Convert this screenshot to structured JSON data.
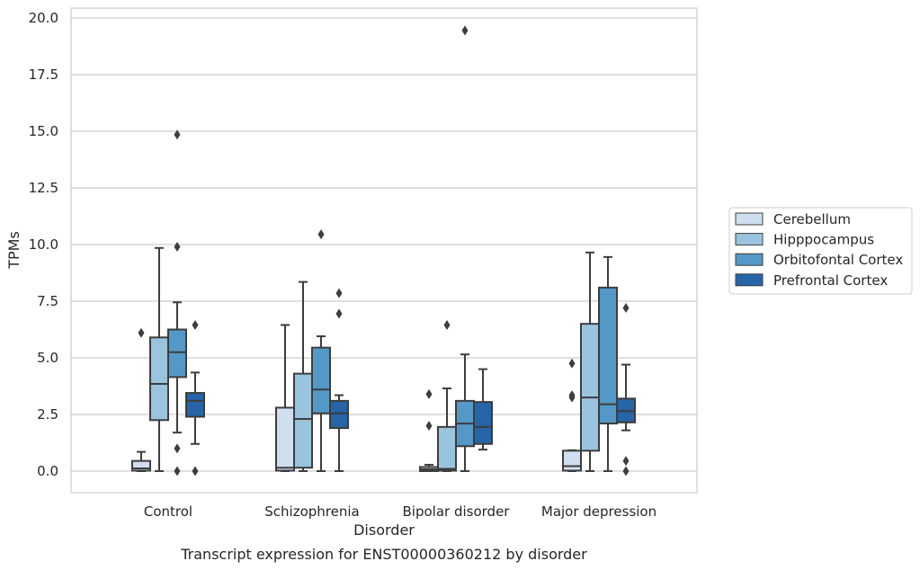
{
  "chart_data": {
    "type": "box",
    "caption": "Transcript expression for ENST00000360212 by disorder",
    "xlabel": "Disorder",
    "ylabel": "TPMs",
    "ylim": [
      -0.9,
      20.5
    ],
    "yticks": [
      "0.0",
      "2.5",
      "5.0",
      "7.5",
      "10.0",
      "12.5",
      "15.0",
      "17.5",
      "20.0"
    ],
    "grid": true,
    "legend_position": "right",
    "categories": [
      "Control",
      "Schizophrenia",
      "Bipolar disorder",
      "Major depression"
    ],
    "series": [
      {
        "name": "Cerebellum",
        "color": "#d0dff0",
        "boxes": [
          {
            "whisker_low": 0.0,
            "q1": 0.02,
            "median": 0.12,
            "q3": 0.45,
            "whisker_high": 0.85,
            "outliers": [
              6.1
            ]
          },
          {
            "whisker_low": 0.0,
            "q1": 0.02,
            "median": 0.15,
            "q3": 2.8,
            "whisker_high": 6.45,
            "outliers": []
          },
          {
            "whisker_low": 0.0,
            "q1": 0.0,
            "median": 0.08,
            "q3": 0.18,
            "whisker_high": 0.28,
            "outliers": [
              3.4,
              2.0
            ]
          },
          {
            "whisker_low": 0.0,
            "q1": 0.02,
            "median": 0.22,
            "q3": 0.9,
            "whisker_high": 0.92,
            "outliers": [
              4.75,
              3.35,
              3.25
            ]
          }
        ]
      },
      {
        "name": "Hipppocampus",
        "color": "#9ac4dd",
        "boxes": [
          {
            "whisker_low": 0.0,
            "q1": 2.25,
            "median": 3.85,
            "q3": 5.9,
            "whisker_high": 9.85,
            "outliers": []
          },
          {
            "whisker_low": 0.0,
            "q1": 0.15,
            "median": 2.3,
            "q3": 4.3,
            "whisker_high": 8.35,
            "outliers": []
          },
          {
            "whisker_low": 0.0,
            "q1": 0.02,
            "median": 0.1,
            "q3": 1.95,
            "whisker_high": 3.65,
            "outliers": [
              6.45
            ]
          },
          {
            "whisker_low": 0.0,
            "q1": 0.9,
            "median": 3.25,
            "q3": 6.5,
            "whisker_high": 9.65,
            "outliers": []
          }
        ]
      },
      {
        "name": "Orbitofontal Cortex",
        "color": "#5498c7",
        "boxes": [
          {
            "whisker_low": 1.7,
            "q1": 4.15,
            "median": 5.25,
            "q3": 6.25,
            "whisker_high": 7.45,
            "outliers": [
              14.85,
              9.9,
              1.0,
              0.0
            ]
          },
          {
            "whisker_low": 0.0,
            "q1": 2.55,
            "median": 3.6,
            "q3": 5.45,
            "whisker_high": 5.95,
            "outliers": [
              10.45
            ]
          },
          {
            "whisker_low": 0.0,
            "q1": 1.1,
            "median": 2.1,
            "q3": 3.1,
            "whisker_high": 5.15,
            "outliers": [
              19.45
            ]
          },
          {
            "whisker_low": 0.0,
            "q1": 2.1,
            "median": 2.95,
            "q3": 8.1,
            "whisker_high": 9.45,
            "outliers": []
          }
        ]
      },
      {
        "name": "Prefrontal Cortex",
        "color": "#2565a8",
        "boxes": [
          {
            "whisker_low": 1.2,
            "q1": 2.4,
            "median": 3.1,
            "q3": 3.45,
            "whisker_high": 4.35,
            "outliers": [
              6.45,
              0.0
            ]
          },
          {
            "whisker_low": 0.0,
            "q1": 1.9,
            "median": 2.55,
            "q3": 3.1,
            "whisker_high": 3.35,
            "outliers": [
              7.85,
              6.95
            ]
          },
          {
            "whisker_low": 0.95,
            "q1": 1.2,
            "median": 1.95,
            "q3": 3.05,
            "whisker_high": 4.5,
            "outliers": []
          },
          {
            "whisker_low": 1.8,
            "q1": 2.15,
            "median": 2.65,
            "q3": 3.2,
            "whisker_high": 4.7,
            "outliers": [
              7.2,
              0.45,
              0.0
            ]
          }
        ]
      }
    ]
  }
}
